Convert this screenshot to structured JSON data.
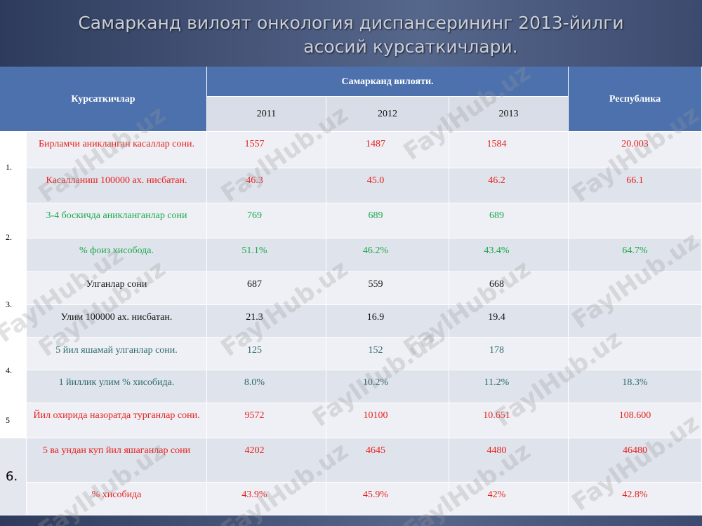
{
  "title": [
    "Самарканд вилоят онкология диспансерининг  2013-йилги",
    "асосий курсаткичлари."
  ],
  "watermark": "FaylHub.uz",
  "table": {
    "header": {
      "indicators": "Курсаткичлар",
      "region": "Самарканд  вилояти.",
      "years": [
        "2011",
        "2012",
        "2013"
      ],
      "republic": "Республика"
    },
    "groups": [
      {
        "number": "1.",
        "color": "#e8201c",
        "rows": [
          {
            "label": "Бирламчи аникланган касаллар сони.",
            "values": [
              "1557",
              "1487",
              "1584"
            ],
            "republic": "20.003"
          },
          {
            "label": "Касалланиш 100000 ах. нисбатан.",
            "values": [
              "46.3",
              "45.0",
              "46.2"
            ],
            "republic": "66.1"
          }
        ]
      },
      {
        "number": "2.",
        "color": "#1aa84a",
        "rows": [
          {
            "label": "3-4 боскичда аникланганлар сони",
            "values": [
              "769",
              "689",
              "689"
            ],
            "republic": null
          },
          {
            "label": "% фоиз хисобода.",
            "values": [
              "51.1%",
              "46.2%",
              "43.4%"
            ],
            "republic": "64.7%"
          }
        ]
      },
      {
        "number": "3.",
        "color": "#111111",
        "rows": [
          {
            "label": "Улганлар сони",
            "values": [
              "687",
              "559",
              "668"
            ],
            "republic": null
          },
          {
            "label": "Улим 100000 ах. нисбатан.",
            "values": [
              "21.3",
              "16.9",
              "19.4"
            ],
            "republic": null
          }
        ]
      },
      {
        "number": "4.",
        "color": "#2b6b70",
        "rows": [
          {
            "label": "5 йил яшамай улганлар сони.",
            "values": [
              "125",
              "152",
              "178"
            ],
            "republic": null
          },
          {
            "label": "1 йиллик улим % хисобида.",
            "values": [
              "8.0%",
              "10.2%",
              "11.2%"
            ],
            "republic": "18.3%"
          }
        ]
      },
      {
        "number": "5",
        "color": "#e8201c",
        "rows": [
          {
            "label": "Йил охирида назоратда турганлар сони.",
            "values": [
              "9572",
              "10100",
              "10.651"
            ],
            "republic": "108.600"
          }
        ]
      },
      {
        "number": "6.",
        "color": "#e8201c",
        "rows": [
          {
            "label": "5 ва ундан куп йил яшаганлар сони",
            "values": [
              "4202",
              "4645",
              "4480"
            ],
            "republic": "46480"
          },
          {
            "label": "% хисобида",
            "values": [
              "43.9%",
              "45.9%",
              "42%"
            ],
            "republic": "42.8%"
          }
        ]
      }
    ]
  }
}
